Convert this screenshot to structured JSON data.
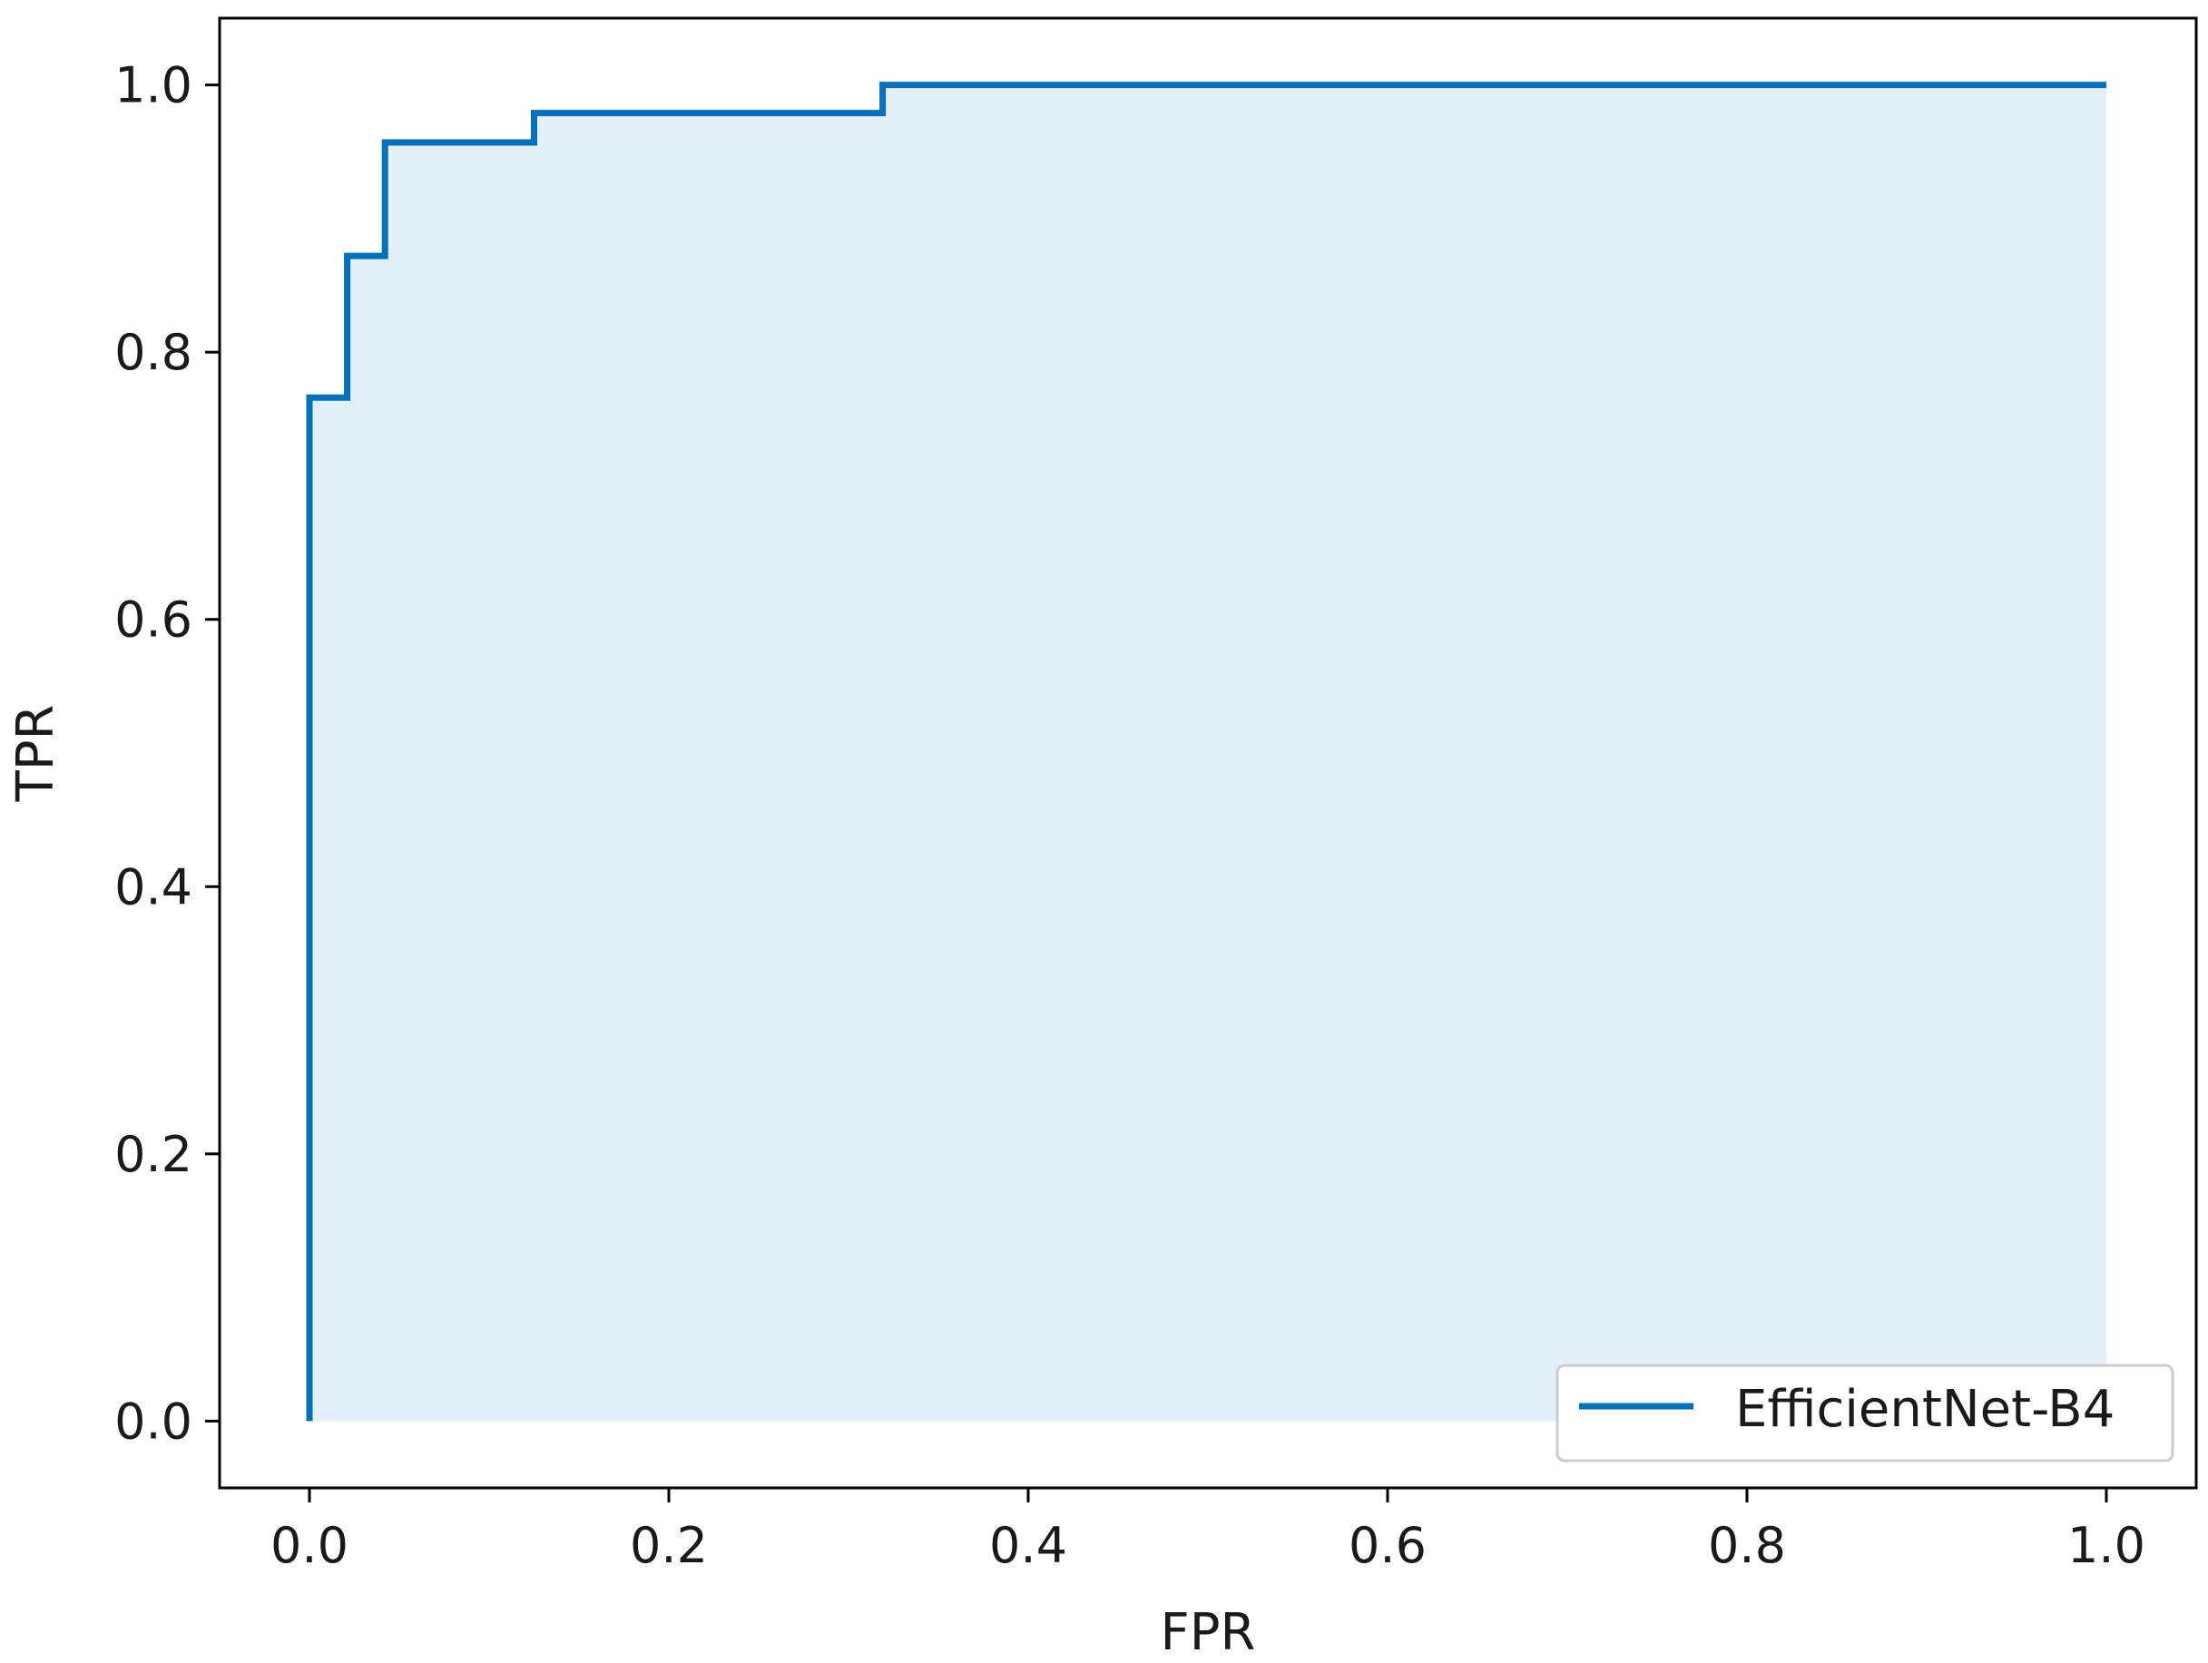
{
  "chart_data": {
    "type": "line",
    "title": "",
    "xlabel": "FPR",
    "ylabel": "TPR",
    "xlim": [
      -0.05,
      1.05
    ],
    "ylim": [
      -0.05,
      1.05
    ],
    "xticks": [
      0.0,
      0.2,
      0.4,
      0.6,
      0.8,
      1.0
    ],
    "yticks": [
      0.0,
      0.2,
      0.4,
      0.6,
      0.8,
      1.0
    ],
    "xtick_labels": [
      "0.0",
      "0.2",
      "0.4",
      "0.6",
      "0.8",
      "1.0"
    ],
    "ytick_labels": [
      "0.0",
      "0.2",
      "0.4",
      "0.6",
      "0.8",
      "1.0"
    ],
    "grid": false,
    "legend_position": "lower-right",
    "series": [
      {
        "name": "EfficientNet-B4",
        "color": "#0072bd",
        "fill_color": "#e3f0f8",
        "drawstyle": "steps",
        "x": [
          0.0,
          0.0,
          0.021,
          0.021,
          0.042,
          0.042,
          0.125,
          0.125,
          0.319,
          0.319,
          1.0
        ],
        "y": [
          0.0,
          0.766,
          0.766,
          0.872,
          0.872,
          0.957,
          0.957,
          0.979,
          0.979,
          1.0,
          1.0
        ]
      }
    ]
  }
}
